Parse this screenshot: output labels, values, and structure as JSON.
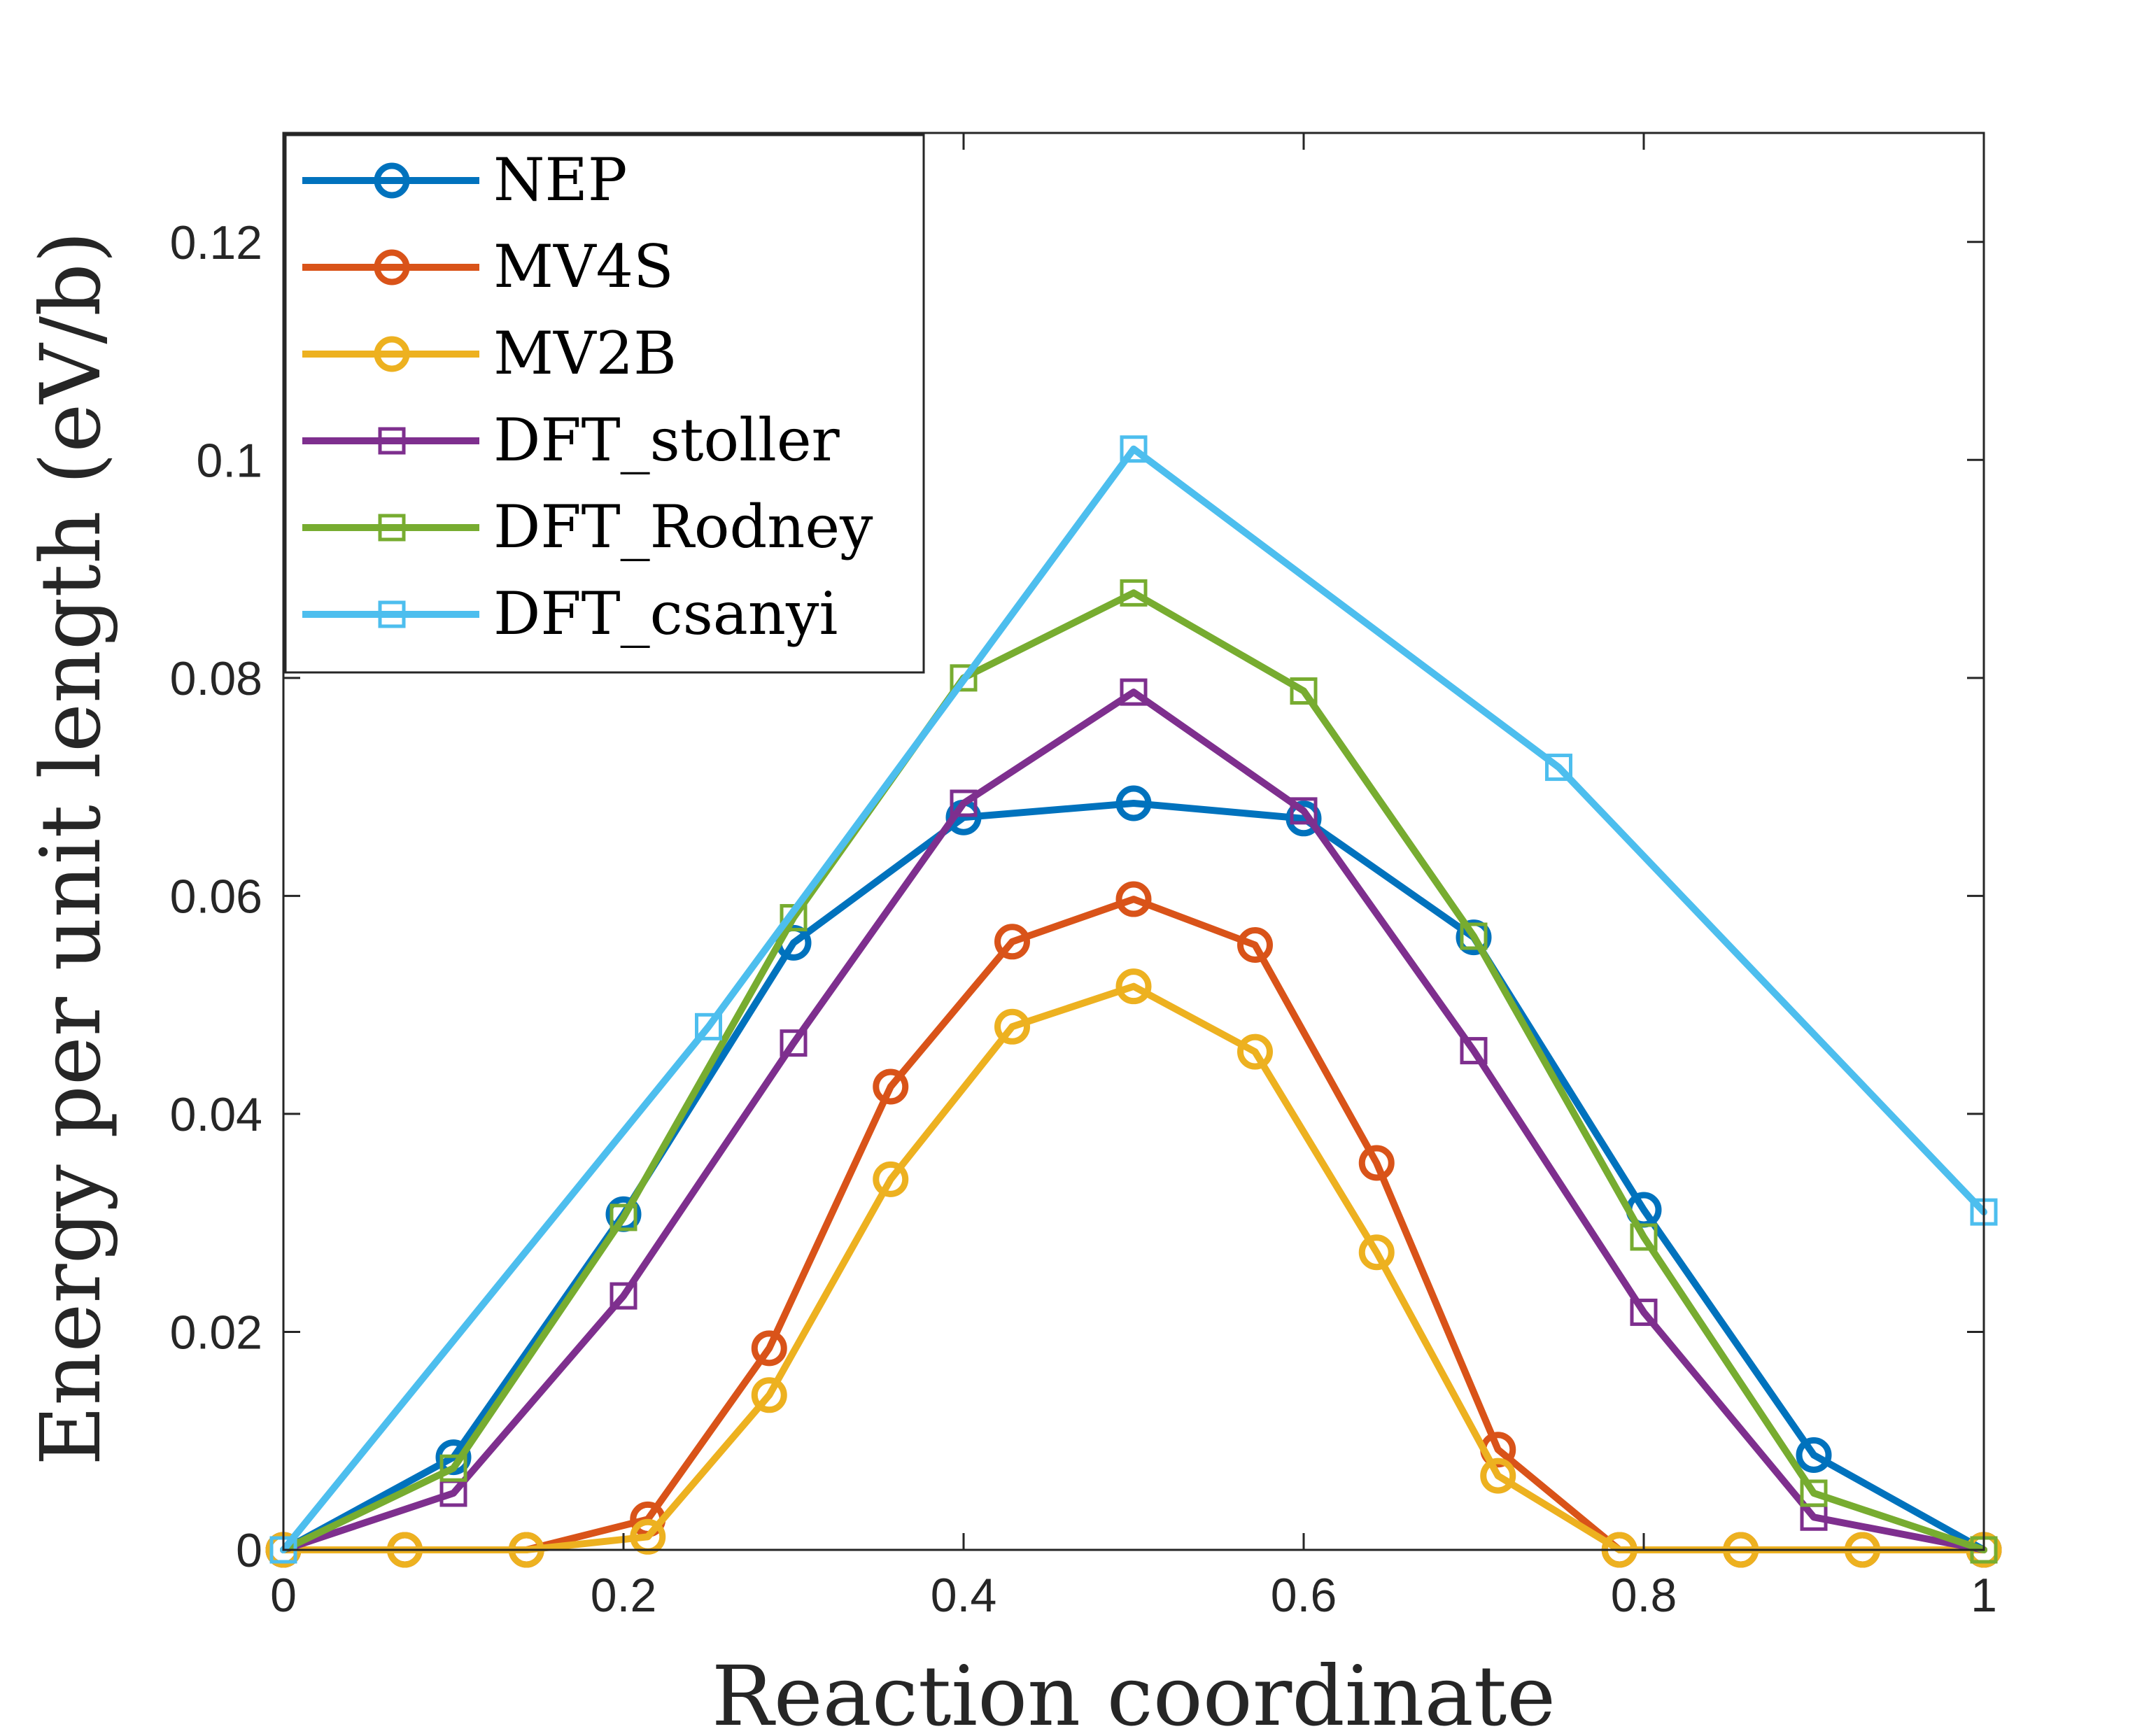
{
  "chart_data": {
    "type": "line",
    "xlabel": "Reaction coordinate",
    "ylabel": "Energy per unit length (eV/b)",
    "xlim": [
      0,
      1
    ],
    "ylim": [
      0,
      0.13
    ],
    "xticks": [
      0,
      0.2,
      0.4,
      0.6,
      0.8,
      1
    ],
    "xtick_labels": [
      "0",
      "0.2",
      "0.4",
      "0.6",
      "0.8",
      "1"
    ],
    "yticks": [
      0,
      0.02,
      0.04,
      0.06,
      0.08,
      0.1,
      0.12
    ],
    "ytick_labels": [
      "0",
      "0.02",
      "0.04",
      "0.06",
      "0.08",
      "0.1",
      "0.12"
    ],
    "grid": false,
    "legend_position": "top-left",
    "series": [
      {
        "name": "NEP",
        "color": "#0072BD",
        "marker": "circle",
        "x": [
          0,
          0.1,
          0.2,
          0.3,
          0.4,
          0.5,
          0.6,
          0.7,
          0.8,
          0.9,
          1.0
        ],
        "y": [
          0,
          0.0085,
          0.0308,
          0.0557,
          0.0672,
          0.0685,
          0.0671,
          0.0562,
          0.0312,
          0.0087,
          0
        ]
      },
      {
        "name": "MV4S",
        "color": "#D95319",
        "marker": "circle",
        "x": [
          0,
          0.0714,
          0.1429,
          0.2143,
          0.2857,
          0.3571,
          0.4286,
          0.5,
          0.5714,
          0.6429,
          0.7143,
          0.7857,
          0.8571,
          0.9286,
          1.0
        ],
        "y": [
          0,
          0,
          0,
          0.0028,
          0.0185,
          0.0425,
          0.0558,
          0.0597,
          0.0555,
          0.0355,
          0.0092,
          0,
          0,
          0,
          0
        ]
      },
      {
        "name": "MV2B",
        "color": "#EDB120",
        "marker": "circle",
        "x": [
          0,
          0.0714,
          0.1429,
          0.2143,
          0.2857,
          0.3571,
          0.4286,
          0.5,
          0.5714,
          0.6429,
          0.7143,
          0.7857,
          0.8571,
          0.9286,
          1.0
        ],
        "y": [
          0,
          0,
          0,
          0.0012,
          0.0142,
          0.034,
          0.048,
          0.0517,
          0.0457,
          0.0273,
          0.0068,
          0,
          0,
          0,
          0
        ]
      },
      {
        "name": "DFT_stoller",
        "color": "#7E2F8E",
        "marker": "square",
        "x": [
          0,
          0.1,
          0.2,
          0.3,
          0.4,
          0.5,
          0.6,
          0.7,
          0.8,
          0.9,
          1.0
        ],
        "y": [
          0,
          0.0052,
          0.0233,
          0.0465,
          0.0685,
          0.0787,
          0.0678,
          0.0458,
          0.0218,
          0.003,
          0
        ]
      },
      {
        "name": "DFT_Rodney",
        "color": "#77AC30",
        "marker": "square",
        "x": [
          0,
          0.1,
          0.2,
          0.3,
          0.4,
          0.5,
          0.6,
          0.7,
          0.8,
          0.9,
          1.0
        ],
        "y": [
          0,
          0.0075,
          0.0305,
          0.058,
          0.08,
          0.0878,
          0.0788,
          0.0563,
          0.0287,
          0.0052,
          0
        ]
      },
      {
        "name": "DFT_csanyi",
        "color": "#4DBEEE",
        "marker": "square",
        "x": [
          0,
          0.25,
          0.5,
          0.75,
          1.0
        ],
        "y": [
          0,
          0.048,
          0.101,
          0.0718,
          0.031
        ]
      }
    ]
  },
  "legend": {
    "labels": [
      "NEP",
      "MV4S",
      "MV2B",
      "DFT_stoller",
      "DFT_Rodney",
      "DFT_csanyi"
    ]
  }
}
